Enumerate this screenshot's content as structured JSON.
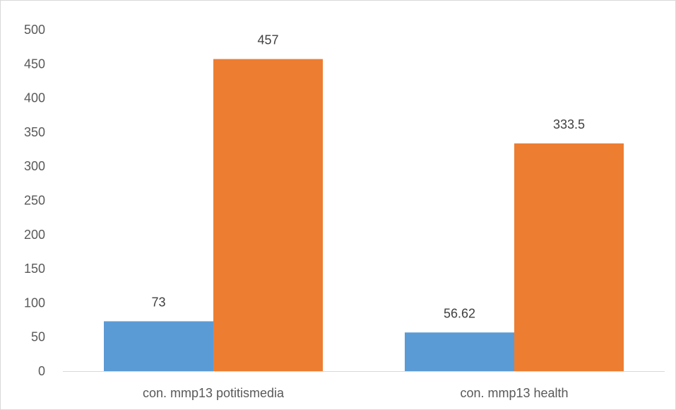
{
  "chart_data": {
    "type": "bar",
    "categories": [
      "con. mmp13 potitismedia",
      "con. mmp13 health"
    ],
    "series": [
      {
        "values": [
          73,
          56.62
        ],
        "color": "#5b9bd5"
      },
      {
        "values": [
          457,
          333.5
        ],
        "color": "#ed7d31"
      }
    ],
    "data_labels": [
      [
        "73",
        "56.62"
      ],
      [
        "457",
        "333.5"
      ]
    ],
    "ylim": [
      0,
      500
    ],
    "yticks": [
      0,
      50,
      100,
      150,
      200,
      250,
      300,
      350,
      400,
      450,
      500
    ],
    "grid": false,
    "legend": "none",
    "title": "",
    "xlabel": "",
    "ylabel": ""
  }
}
